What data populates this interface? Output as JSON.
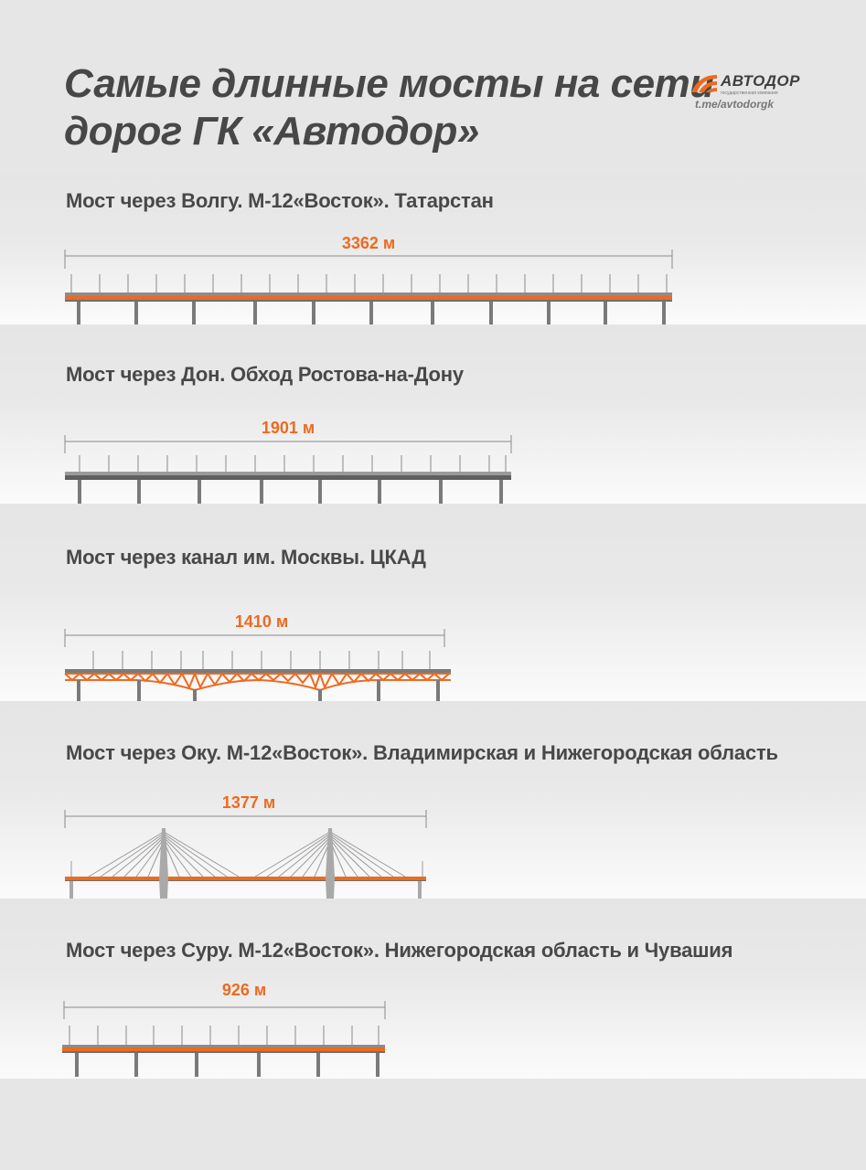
{
  "header": {
    "title_line1": "Самые длинные мосты на сети",
    "title_line2": "дорог ГК «Автодор»"
  },
  "logo": {
    "name": "АВТОДОР",
    "subtitle": "государственная компания",
    "link": "t.me/avtodorgk"
  },
  "colors": {
    "accent": "#ee6a1f",
    "text": "#484848",
    "structure": "#7a7a7a"
  },
  "bridges": [
    {
      "title": "Мост через Волгу. М-12«Восток». Татарстан",
      "length_label": "3362 м",
      "length_m": 3362,
      "style": "beam-orange"
    },
    {
      "title": "Мост через Дон. Обход Ростова-на-Дону",
      "length_label": "1901 м",
      "length_m": 1901,
      "style": "beam-grey"
    },
    {
      "title": "Мост через канал им. Москвы. ЦКАД",
      "length_label": "1410 м",
      "length_m": 1410,
      "style": "truss"
    },
    {
      "title": "Мост через Оку. М-12«Восток». Владимирская и Нижегородская область",
      "length_label": "1377 м",
      "length_m": 1377,
      "style": "cable-stayed"
    },
    {
      "title": "Мост через Суру. М-12«Восток». Нижегородская область и Чувашия",
      "length_label": "926 м",
      "length_m": 926,
      "style": "beam-orange"
    }
  ]
}
